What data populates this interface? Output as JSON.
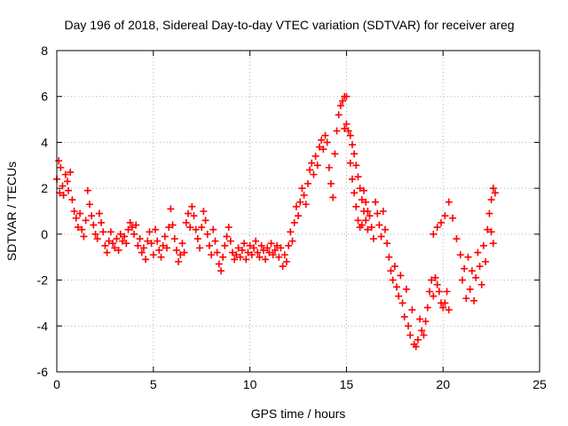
{
  "chart_data": {
    "type": "scatter",
    "title": "Day 196 of 2018, Sidereal Day-to-day VTEC variation (SDTVAR) for receiver areg",
    "xlabel": "GPS time / hours",
    "ylabel": "SDTVAR / TECUs",
    "xlim": [
      0,
      25
    ],
    "ylim": [
      -6,
      8
    ],
    "x_ticks": [
      "0",
      "5",
      "10",
      "15",
      "20",
      "25"
    ],
    "y_ticks": [
      "-6",
      "-4",
      "-2",
      "0",
      "2",
      "4",
      "6",
      "8"
    ],
    "grid": true,
    "marker": "+",
    "color": "#ff0000",
    "series": [
      {
        "name": "SDTVAR",
        "points": [
          [
            0.0,
            2.4
          ],
          [
            0.1,
            3.2
          ],
          [
            0.15,
            1.8
          ],
          [
            0.2,
            2.9
          ],
          [
            0.3,
            2.1
          ],
          [
            0.35,
            1.7
          ],
          [
            0.45,
            2.6
          ],
          [
            0.55,
            2.3
          ],
          [
            0.6,
            1.9
          ],
          [
            0.7,
            2.7
          ],
          [
            0.8,
            1.5
          ],
          [
            0.9,
            1.0
          ],
          [
            1.0,
            0.7
          ],
          [
            1.1,
            0.3
          ],
          [
            1.2,
            0.9
          ],
          [
            1.3,
            0.2
          ],
          [
            1.4,
            -0.1
          ],
          [
            1.5,
            0.6
          ],
          [
            1.6,
            1.9
          ],
          [
            1.7,
            1.3
          ],
          [
            1.8,
            0.8
          ],
          [
            1.9,
            0.4
          ],
          [
            2.0,
            0.0
          ],
          [
            2.1,
            -0.2
          ],
          [
            2.2,
            0.9
          ],
          [
            2.3,
            0.5
          ],
          [
            2.4,
            0.1
          ],
          [
            2.5,
            -0.5
          ],
          [
            2.6,
            -0.8
          ],
          [
            2.7,
            -0.3
          ],
          [
            2.8,
            0.1
          ],
          [
            2.9,
            -0.4
          ],
          [
            3.0,
            -0.6
          ],
          [
            3.1,
            -0.2
          ],
          [
            3.2,
            -0.7
          ],
          [
            3.3,
            0.0
          ],
          [
            3.4,
            -0.3
          ],
          [
            3.5,
            -0.1
          ],
          [
            3.6,
            -0.4
          ],
          [
            3.7,
            0.2
          ],
          [
            3.8,
            0.5
          ],
          [
            3.9,
            0.3
          ],
          [
            4.0,
            0.0
          ],
          [
            4.1,
            0.4
          ],
          [
            4.2,
            -0.5
          ],
          [
            4.3,
            -0.2
          ],
          [
            4.4,
            -0.8
          ],
          [
            4.5,
            -0.6
          ],
          [
            4.6,
            -1.1
          ],
          [
            4.7,
            -0.3
          ],
          [
            4.8,
            0.1
          ],
          [
            4.9,
            -0.4
          ],
          [
            5.0,
            -0.9
          ],
          [
            5.1,
            0.2
          ],
          [
            5.2,
            -0.3
          ],
          [
            5.3,
            -0.7
          ],
          [
            5.4,
            -1.0
          ],
          [
            5.5,
            -0.5
          ],
          [
            5.6,
            -0.1
          ],
          [
            5.7,
            -0.6
          ],
          [
            5.8,
            0.3
          ],
          [
            5.9,
            1.1
          ],
          [
            6.0,
            0.4
          ],
          [
            6.1,
            -0.2
          ],
          [
            6.2,
            -0.7
          ],
          [
            6.3,
            -1.2
          ],
          [
            6.4,
            -0.9
          ],
          [
            6.5,
            -0.4
          ],
          [
            6.6,
            -0.8
          ],
          [
            6.7,
            0.5
          ],
          [
            6.8,
            0.9
          ],
          [
            6.9,
            0.3
          ],
          [
            7.0,
            1.2
          ],
          [
            7.1,
            0.8
          ],
          [
            7.2,
            0.2
          ],
          [
            7.3,
            -0.2
          ],
          [
            7.4,
            -0.6
          ],
          [
            7.5,
            0.3
          ],
          [
            7.6,
            1.0
          ],
          [
            7.7,
            0.6
          ],
          [
            7.8,
            0.0
          ],
          [
            7.9,
            -0.5
          ],
          [
            8.0,
            -0.9
          ],
          [
            8.1,
            0.2
          ],
          [
            8.2,
            -0.3
          ],
          [
            8.3,
            -0.8
          ],
          [
            8.4,
            -1.3
          ],
          [
            8.5,
            -1.6
          ],
          [
            8.6,
            -1.0
          ],
          [
            8.7,
            -0.5
          ],
          [
            8.8,
            -0.1
          ],
          [
            8.9,
            0.3
          ],
          [
            9.0,
            -0.3
          ],
          [
            9.1,
            -0.8
          ],
          [
            9.2,
            -1.1
          ],
          [
            9.3,
            -0.9
          ],
          [
            9.4,
            -0.6
          ],
          [
            9.5,
            -1.0
          ],
          [
            9.6,
            -0.7
          ],
          [
            9.7,
            -0.4
          ],
          [
            9.8,
            -1.1
          ],
          [
            9.9,
            -0.8
          ],
          [
            10.0,
            -0.5
          ],
          [
            10.1,
            -0.9
          ],
          [
            10.2,
            -0.6
          ],
          [
            10.3,
            -0.3
          ],
          [
            10.4,
            -0.8
          ],
          [
            10.5,
            -1.0
          ],
          [
            10.6,
            -0.5
          ],
          [
            10.7,
            -0.7
          ],
          [
            10.8,
            -1.1
          ],
          [
            10.9,
            -0.6
          ],
          [
            11.0,
            -0.8
          ],
          [
            11.1,
            -0.4
          ],
          [
            11.2,
            -0.9
          ],
          [
            11.3,
            -0.7
          ],
          [
            11.4,
            -0.5
          ],
          [
            11.5,
            -1.0
          ],
          [
            11.6,
            -0.6
          ],
          [
            11.7,
            -1.4
          ],
          [
            11.8,
            -0.9
          ],
          [
            11.9,
            -1.2
          ],
          [
            12.0,
            -0.5
          ],
          [
            12.1,
            0.1
          ],
          [
            12.2,
            -0.3
          ],
          [
            12.3,
            0.5
          ],
          [
            12.4,
            1.2
          ],
          [
            12.5,
            0.8
          ],
          [
            12.6,
            1.4
          ],
          [
            12.7,
            2.0
          ],
          [
            12.8,
            1.7
          ],
          [
            12.9,
            1.3
          ],
          [
            13.0,
            2.2
          ],
          [
            13.1,
            2.8
          ],
          [
            13.2,
            3.1
          ],
          [
            13.3,
            2.6
          ],
          [
            13.4,
            3.4
          ],
          [
            13.5,
            3.0
          ],
          [
            13.6,
            3.8
          ],
          [
            13.7,
            4.1
          ],
          [
            13.8,
            3.7
          ],
          [
            13.9,
            4.3
          ],
          [
            14.0,
            4.0
          ],
          [
            14.1,
            2.9
          ],
          [
            14.2,
            2.2
          ],
          [
            14.3,
            1.6
          ],
          [
            14.4,
            3.5
          ],
          [
            14.5,
            4.5
          ],
          [
            14.6,
            5.2
          ],
          [
            14.7,
            5.6
          ],
          [
            14.8,
            5.8
          ],
          [
            14.9,
            6.0
          ],
          [
            15.0,
            6.0
          ],
          [
            14.9,
            4.6
          ],
          [
            15.0,
            4.8
          ],
          [
            15.1,
            4.5
          ],
          [
            15.2,
            4.3
          ],
          [
            15.3,
            3.9
          ],
          [
            15.4,
            3.5
          ],
          [
            15.5,
            3.0
          ],
          [
            15.6,
            2.5
          ],
          [
            15.7,
            2.0
          ],
          [
            15.8,
            1.5
          ],
          [
            15.9,
            1.0
          ],
          [
            16.0,
            0.6
          ],
          [
            16.1,
            0.2
          ],
          [
            15.2,
            3.1
          ],
          [
            15.3,
            2.4
          ],
          [
            15.4,
            1.8
          ],
          [
            15.5,
            1.2
          ],
          [
            15.6,
            0.6
          ],
          [
            15.7,
            0.3
          ],
          [
            15.8,
            0.4
          ],
          [
            15.9,
            1.9
          ],
          [
            16.0,
            1.4
          ],
          [
            16.1,
            1.0
          ],
          [
            16.2,
            0.8
          ],
          [
            16.3,
            0.3
          ],
          [
            16.4,
            -0.2
          ],
          [
            16.5,
            1.4
          ],
          [
            16.6,
            0.9
          ],
          [
            16.7,
            0.4
          ],
          [
            16.8,
            -0.1
          ],
          [
            16.9,
            1.0
          ],
          [
            17.0,
            0.2
          ],
          [
            17.1,
            -0.4
          ],
          [
            17.2,
            -1.0
          ],
          [
            17.3,
            -1.6
          ],
          [
            17.4,
            -2.0
          ],
          [
            17.5,
            -1.4
          ],
          [
            17.6,
            -2.3
          ],
          [
            17.7,
            -2.7
          ],
          [
            17.8,
            -1.8
          ],
          [
            17.9,
            -3.0
          ],
          [
            18.0,
            -3.6
          ],
          [
            18.1,
            -2.4
          ],
          [
            18.2,
            -4.0
          ],
          [
            18.3,
            -4.4
          ],
          [
            18.4,
            -3.3
          ],
          [
            18.5,
            -4.8
          ],
          [
            18.6,
            -4.9
          ],
          [
            18.7,
            -4.6
          ],
          [
            18.8,
            -3.7
          ],
          [
            18.9,
            -4.2
          ],
          [
            19.0,
            -4.4
          ],
          [
            19.1,
            -3.8
          ],
          [
            19.2,
            -3.2
          ],
          [
            19.3,
            -2.5
          ],
          [
            19.4,
            -2.0
          ],
          [
            19.5,
            -2.7
          ],
          [
            19.6,
            -1.9
          ],
          [
            19.7,
            -2.2
          ],
          [
            19.8,
            -2.5
          ],
          [
            19.9,
            -3.0
          ],
          [
            20.0,
            -3.2
          ],
          [
            20.1,
            -3.0
          ],
          [
            20.2,
            -2.5
          ],
          [
            20.3,
            -3.3
          ],
          [
            19.5,
            0.0
          ],
          [
            19.7,
            0.3
          ],
          [
            19.9,
            0.5
          ],
          [
            20.1,
            0.8
          ],
          [
            20.3,
            1.4
          ],
          [
            20.5,
            0.7
          ],
          [
            20.7,
            -0.2
          ],
          [
            20.9,
            -0.9
          ],
          [
            21.0,
            -2.0
          ],
          [
            21.1,
            -1.5
          ],
          [
            21.2,
            -2.8
          ],
          [
            21.3,
            -1.0
          ],
          [
            21.4,
            -2.4
          ],
          [
            21.5,
            -1.6
          ],
          [
            21.6,
            -2.9
          ],
          [
            21.7,
            -1.9
          ],
          [
            21.8,
            -0.8
          ],
          [
            21.9,
            -1.4
          ],
          [
            22.0,
            -2.2
          ],
          [
            22.1,
            -0.5
          ],
          [
            22.2,
            -1.2
          ],
          [
            22.3,
            0.2
          ],
          [
            22.4,
            0.9
          ],
          [
            22.5,
            1.5
          ],
          [
            22.6,
            2.0
          ],
          [
            22.7,
            1.8
          ],
          [
            22.6,
            -0.4
          ],
          [
            22.5,
            0.1
          ]
        ]
      }
    ]
  }
}
